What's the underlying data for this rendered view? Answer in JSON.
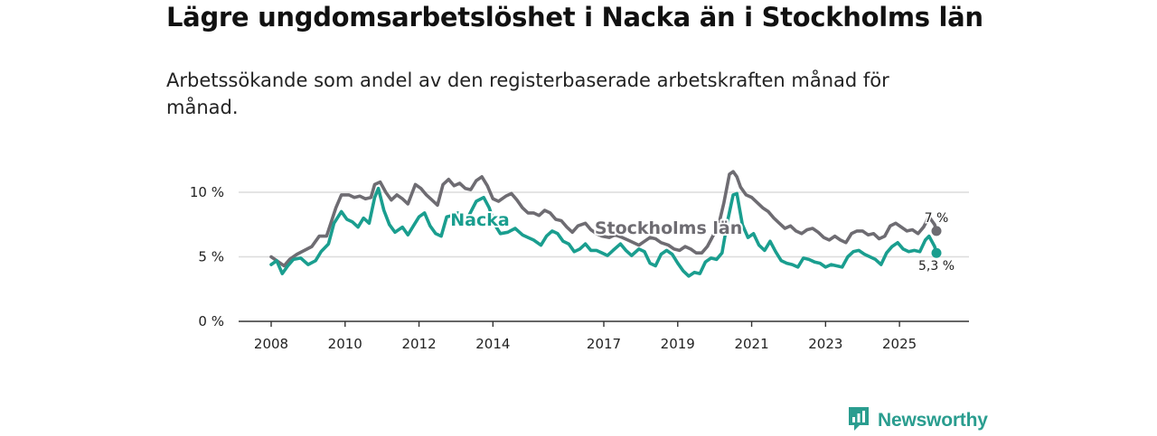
{
  "header": {
    "title": "Lägre ungdomsarbetslöshet i Nacka än i Stockholms län",
    "subtitle": "Arbetssökande som andel av den registerbaserade arbetskraften månad för månad."
  },
  "brand": {
    "name": "Newsworthy",
    "logo_icon": "newsworthy-logo-icon",
    "color": "#2a9d8f"
  },
  "chart_data": {
    "type": "line",
    "title": "Lägre ungdomsarbetslöshet i Nacka än i Stockholms län",
    "subtitle": "Arbetssökande som andel av den registerbaserade arbetskraften månad för månad.",
    "xlabel": "",
    "ylabel": "",
    "xlim": [
      2008,
      2026
    ],
    "ylim": [
      0,
      11.5
    ],
    "grid": true,
    "legend": "inline labels",
    "x_ticks": [
      {
        "value": 2008,
        "label": "2008"
      },
      {
        "value": 2010,
        "label": "2010"
      },
      {
        "value": 2012,
        "label": "2012"
      },
      {
        "value": 2014,
        "label": "2014"
      },
      {
        "value": 2017,
        "label": "2017"
      },
      {
        "value": 2019,
        "label": "2019"
      },
      {
        "value": 2021,
        "label": "2021"
      },
      {
        "value": 2023,
        "label": "2023"
      },
      {
        "value": 2025,
        "label": "2025"
      }
    ],
    "y_ticks": [
      {
        "value": 0,
        "label": "0 %"
      },
      {
        "value": 5,
        "label": "5 %"
      },
      {
        "value": 10,
        "label": "10 %"
      }
    ],
    "series": [
      {
        "name": "Stockholms län",
        "color": "#6e6c72",
        "label_at": [
          2018.75,
          6.8
        ],
        "end_label": "7 %",
        "end_value": 7.0,
        "points": [
          [
            2008.0,
            5.0
          ],
          [
            2008.2,
            4.6
          ],
          [
            2008.35,
            4.3
          ],
          [
            2008.5,
            4.8
          ],
          [
            2008.7,
            5.2
          ],
          [
            2008.9,
            5.5
          ],
          [
            2009.1,
            5.8
          ],
          [
            2009.3,
            6.6
          ],
          [
            2009.5,
            6.6
          ],
          [
            2009.75,
            8.8
          ],
          [
            2009.9,
            9.8
          ],
          [
            2010.1,
            9.8
          ],
          [
            2010.25,
            9.6
          ],
          [
            2010.4,
            9.7
          ],
          [
            2010.55,
            9.5
          ],
          [
            2010.7,
            9.6
          ],
          [
            2010.8,
            10.6
          ],
          [
            2010.95,
            10.8
          ],
          [
            2011.1,
            10.0
          ],
          [
            2011.25,
            9.4
          ],
          [
            2011.4,
            9.8
          ],
          [
            2011.55,
            9.5
          ],
          [
            2011.7,
            9.1
          ],
          [
            2011.9,
            10.6
          ],
          [
            2012.05,
            10.3
          ],
          [
            2012.2,
            9.8
          ],
          [
            2012.35,
            9.4
          ],
          [
            2012.5,
            9.0
          ],
          [
            2012.65,
            10.6
          ],
          [
            2012.8,
            11.0
          ],
          [
            2012.95,
            10.5
          ],
          [
            2013.1,
            10.7
          ],
          [
            2013.25,
            10.3
          ],
          [
            2013.4,
            10.2
          ],
          [
            2013.55,
            10.9
          ],
          [
            2013.7,
            11.2
          ],
          [
            2013.85,
            10.5
          ],
          [
            2014.0,
            9.5
          ],
          [
            2014.15,
            9.3
          ],
          [
            2014.35,
            9.7
          ],
          [
            2014.5,
            9.9
          ],
          [
            2014.65,
            9.4
          ],
          [
            2014.8,
            8.8
          ],
          [
            2014.95,
            8.4
          ],
          [
            2015.1,
            8.4
          ],
          [
            2015.25,
            8.2
          ],
          [
            2015.4,
            8.6
          ],
          [
            2015.55,
            8.4
          ],
          [
            2015.7,
            7.9
          ],
          [
            2015.85,
            7.8
          ],
          [
            2016.0,
            7.3
          ],
          [
            2016.15,
            6.9
          ],
          [
            2016.3,
            7.4
          ],
          [
            2016.5,
            7.6
          ],
          [
            2016.65,
            7.1
          ],
          [
            2016.8,
            6.8
          ],
          [
            2016.95,
            6.6
          ],
          [
            2017.15,
            6.5
          ],
          [
            2017.3,
            6.7
          ],
          [
            2017.5,
            6.5
          ],
          [
            2017.65,
            6.3
          ],
          [
            2017.8,
            6.1
          ],
          [
            2017.95,
            5.9
          ],
          [
            2018.1,
            6.2
          ],
          [
            2018.25,
            6.5
          ],
          [
            2018.4,
            6.4
          ],
          [
            2018.55,
            6.1
          ],
          [
            2018.75,
            5.9
          ],
          [
            2018.9,
            5.6
          ],
          [
            2019.05,
            5.5
          ],
          [
            2019.2,
            5.8
          ],
          [
            2019.35,
            5.6
          ],
          [
            2019.5,
            5.3
          ],
          [
            2019.65,
            5.3
          ],
          [
            2019.8,
            5.8
          ],
          [
            2019.95,
            6.6
          ],
          [
            2020.1,
            7.4
          ],
          [
            2020.25,
            9.2
          ],
          [
            2020.4,
            11.4
          ],
          [
            2020.5,
            11.6
          ],
          [
            2020.6,
            11.2
          ],
          [
            2020.7,
            10.4
          ],
          [
            2020.85,
            9.8
          ],
          [
            2021.0,
            9.6
          ],
          [
            2021.15,
            9.2
          ],
          [
            2021.3,
            8.8
          ],
          [
            2021.45,
            8.5
          ],
          [
            2021.6,
            8.0
          ],
          [
            2021.75,
            7.6
          ],
          [
            2021.9,
            7.2
          ],
          [
            2022.05,
            7.4
          ],
          [
            2022.2,
            7.0
          ],
          [
            2022.35,
            6.8
          ],
          [
            2022.5,
            7.1
          ],
          [
            2022.65,
            7.2
          ],
          [
            2022.8,
            6.9
          ],
          [
            2022.95,
            6.5
          ],
          [
            2023.1,
            6.3
          ],
          [
            2023.25,
            6.6
          ],
          [
            2023.4,
            6.3
          ],
          [
            2023.55,
            6.1
          ],
          [
            2023.7,
            6.8
          ],
          [
            2023.85,
            7.0
          ],
          [
            2024.0,
            7.0
          ],
          [
            2024.15,
            6.7
          ],
          [
            2024.3,
            6.8
          ],
          [
            2024.45,
            6.4
          ],
          [
            2024.6,
            6.6
          ],
          [
            2024.75,
            7.4
          ],
          [
            2024.9,
            7.6
          ],
          [
            2025.05,
            7.3
          ],
          [
            2025.2,
            7.0
          ],
          [
            2025.35,
            7.1
          ],
          [
            2025.5,
            6.8
          ],
          [
            2025.65,
            7.3
          ],
          [
            2025.8,
            8.1
          ],
          [
            2025.95,
            7.5
          ],
          [
            2026.0,
            7.0
          ]
        ]
      },
      {
        "name": "Nacka",
        "color": "#1a9e8f",
        "label_at": [
          2013.65,
          7.4
        ],
        "end_label": "5,3 %",
        "end_value": 5.3,
        "points": [
          [
            2008.0,
            4.4
          ],
          [
            2008.15,
            4.7
          ],
          [
            2008.3,
            3.7
          ],
          [
            2008.45,
            4.3
          ],
          [
            2008.6,
            4.8
          ],
          [
            2008.8,
            4.9
          ],
          [
            2009.0,
            4.4
          ],
          [
            2009.2,
            4.7
          ],
          [
            2009.35,
            5.4
          ],
          [
            2009.55,
            6.0
          ],
          [
            2009.7,
            7.6
          ],
          [
            2009.9,
            8.5
          ],
          [
            2010.05,
            7.9
          ],
          [
            2010.2,
            7.7
          ],
          [
            2010.35,
            7.3
          ],
          [
            2010.5,
            8.0
          ],
          [
            2010.65,
            7.6
          ],
          [
            2010.8,
            9.6
          ],
          [
            2010.9,
            10.3
          ],
          [
            2011.05,
            8.6
          ],
          [
            2011.2,
            7.5
          ],
          [
            2011.35,
            6.9
          ],
          [
            2011.55,
            7.3
          ],
          [
            2011.7,
            6.7
          ],
          [
            2011.85,
            7.4
          ],
          [
            2012.0,
            8.1
          ],
          [
            2012.15,
            8.4
          ],
          [
            2012.3,
            7.4
          ],
          [
            2012.45,
            6.8
          ],
          [
            2012.6,
            6.6
          ],
          [
            2012.75,
            8.1
          ],
          [
            2012.9,
            8.2
          ],
          [
            2013.05,
            8.4
          ],
          [
            2013.2,
            7.8
          ],
          [
            2013.35,
            8.2
          ],
          [
            2013.55,
            9.3
          ],
          [
            2013.75,
            9.6
          ],
          [
            2013.9,
            8.8
          ],
          [
            2014.05,
            7.5
          ],
          [
            2014.2,
            6.8
          ],
          [
            2014.4,
            6.9
          ],
          [
            2014.6,
            7.2
          ],
          [
            2014.8,
            6.7
          ],
          [
            2014.95,
            6.5
          ],
          [
            2015.1,
            6.3
          ],
          [
            2015.3,
            5.9
          ],
          [
            2015.45,
            6.6
          ],
          [
            2015.6,
            7.0
          ],
          [
            2015.75,
            6.8
          ],
          [
            2015.9,
            6.2
          ],
          [
            2016.05,
            6.0
          ],
          [
            2016.2,
            5.4
          ],
          [
            2016.35,
            5.6
          ],
          [
            2016.5,
            6.0
          ],
          [
            2016.65,
            5.5
          ],
          [
            2016.8,
            5.5
          ],
          [
            2016.95,
            5.3
          ],
          [
            2017.1,
            5.1
          ],
          [
            2017.25,
            5.5
          ],
          [
            2017.45,
            6.0
          ],
          [
            2017.6,
            5.5
          ],
          [
            2017.75,
            5.1
          ],
          [
            2017.95,
            5.6
          ],
          [
            2018.1,
            5.4
          ],
          [
            2018.25,
            4.5
          ],
          [
            2018.4,
            4.3
          ],
          [
            2018.55,
            5.2
          ],
          [
            2018.7,
            5.5
          ],
          [
            2018.85,
            5.2
          ],
          [
            2019.0,
            4.5
          ],
          [
            2019.15,
            3.9
          ],
          [
            2019.3,
            3.5
          ],
          [
            2019.45,
            3.8
          ],
          [
            2019.6,
            3.7
          ],
          [
            2019.75,
            4.6
          ],
          [
            2019.9,
            4.9
          ],
          [
            2020.05,
            4.8
          ],
          [
            2020.2,
            5.3
          ],
          [
            2020.35,
            7.8
          ],
          [
            2020.5,
            9.8
          ],
          [
            2020.6,
            9.9
          ],
          [
            2020.75,
            7.5
          ],
          [
            2020.9,
            6.5
          ],
          [
            2021.05,
            6.8
          ],
          [
            2021.2,
            5.9
          ],
          [
            2021.35,
            5.5
          ],
          [
            2021.5,
            6.2
          ],
          [
            2021.65,
            5.4
          ],
          [
            2021.8,
            4.7
          ],
          [
            2021.95,
            4.5
          ],
          [
            2022.1,
            4.4
          ],
          [
            2022.25,
            4.2
          ],
          [
            2022.4,
            4.9
          ],
          [
            2022.55,
            4.8
          ],
          [
            2022.7,
            4.6
          ],
          [
            2022.85,
            4.5
          ],
          [
            2023.0,
            4.2
          ],
          [
            2023.15,
            4.4
          ],
          [
            2023.3,
            4.3
          ],
          [
            2023.45,
            4.2
          ],
          [
            2023.6,
            5.0
          ],
          [
            2023.75,
            5.4
          ],
          [
            2023.9,
            5.5
          ],
          [
            2024.05,
            5.2
          ],
          [
            2024.2,
            5.0
          ],
          [
            2024.35,
            4.8
          ],
          [
            2024.5,
            4.4
          ],
          [
            2024.65,
            5.3
          ],
          [
            2024.8,
            5.8
          ],
          [
            2024.95,
            6.1
          ],
          [
            2025.1,
            5.6
          ],
          [
            2025.25,
            5.4
          ],
          [
            2025.4,
            5.5
          ],
          [
            2025.55,
            5.4
          ],
          [
            2025.7,
            6.3
          ],
          [
            2025.8,
            6.6
          ],
          [
            2025.95,
            5.8
          ],
          [
            2026.0,
            5.3
          ]
        ]
      }
    ]
  }
}
